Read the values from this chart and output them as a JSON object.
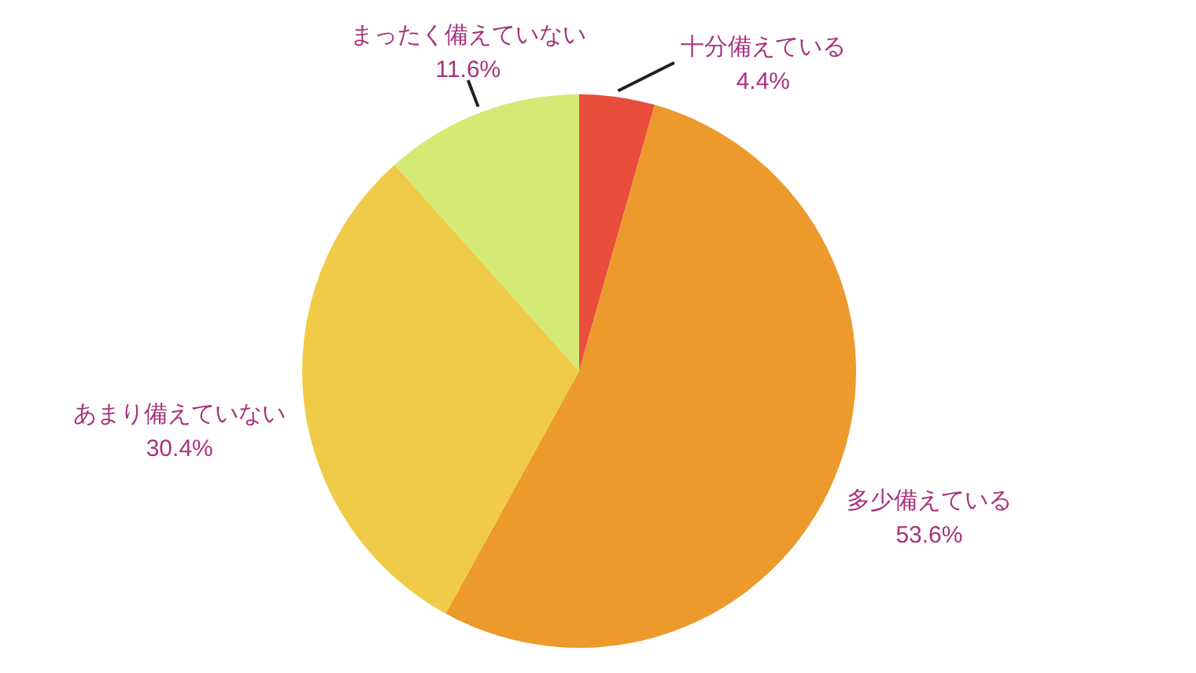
{
  "chart_data": {
    "type": "pie",
    "categories": [
      "十分備えている",
      "多少備えている",
      "あまり備えていない",
      "まったく備えていない"
    ],
    "values": [
      4.4,
      53.6,
      30.4,
      11.6
    ],
    "value_labels": [
      "4.4%",
      "53.6%",
      "30.4%",
      "11.6%"
    ],
    "colors": [
      "#e94e3c",
      "#ec9a2b",
      "#efcb47",
      "#d5ea75"
    ]
  }
}
